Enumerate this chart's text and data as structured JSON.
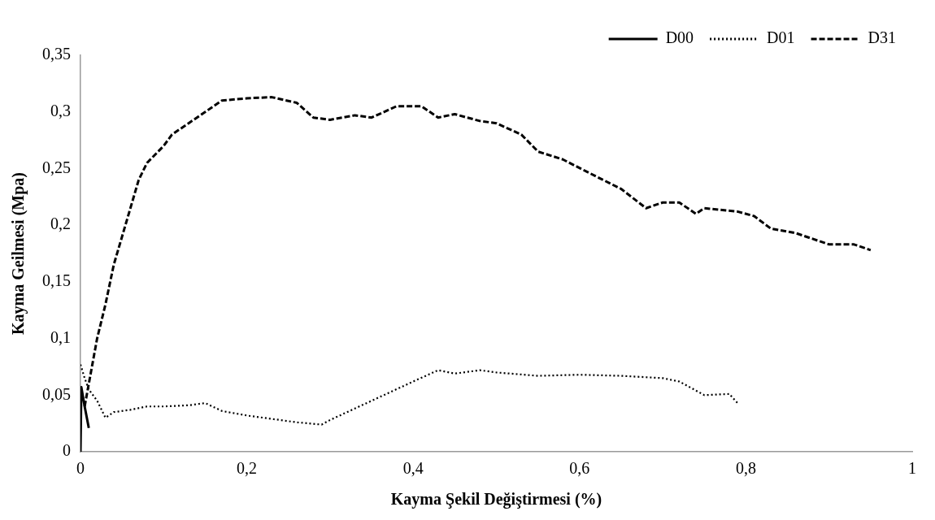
{
  "chart_data": {
    "type": "line",
    "xlabel": "Kayma Şekil Değiştirmesi (%)",
    "ylabel": "Kayma Geilmesi (Mpa)",
    "xlim": [
      0,
      1
    ],
    "xticks": [
      0,
      {
        "value": 0.2,
        "label": "0,2"
      },
      {
        "value": 0.4,
        "label": "0,4"
      },
      {
        "value": 0.6,
        "label": "0,6"
      },
      {
        "value": 0.8,
        "label": "0,8"
      },
      1
    ],
    "ylim": [
      0,
      0.35
    ],
    "yticks": [
      0,
      {
        "value": 0.05,
        "label": "0,05"
      },
      {
        "value": 0.1,
        "label": "0,1"
      },
      {
        "value": 0.15,
        "label": "0,15"
      },
      {
        "value": 0.2,
        "label": "0,2"
      },
      {
        "value": 0.25,
        "label": "0,25"
      },
      {
        "value": 0.3,
        "label": "0,3"
      },
      {
        "value": 0.35,
        "label": "0,35"
      }
    ],
    "grid": false,
    "legend": "top right",
    "marker": "none",
    "series": [
      {
        "name": "D00",
        "color": "#000000",
        "line_style": "solid",
        "x": [
          0,
          0.001,
          0.005,
          0.01
        ],
        "values": [
          0,
          0.057,
          0.04,
          0.021
        ]
      },
      {
        "name": "D01",
        "color": "#000000",
        "line_style": "dotted",
        "x": [
          0,
          0.005,
          0.01,
          0.02,
          0.03,
          0.04,
          0.06,
          0.08,
          0.1,
          0.13,
          0.15,
          0.17,
          0.2,
          0.23,
          0.26,
          0.29,
          0.3,
          0.35,
          0.4,
          0.43,
          0.45,
          0.48,
          0.5,
          0.55,
          0.6,
          0.65,
          0.7,
          0.72,
          0.75,
          0.78,
          0.79
        ],
        "values": [
          0.077,
          0.065,
          0.055,
          0.045,
          0.03,
          0.035,
          0.037,
          0.04,
          0.04,
          0.041,
          0.043,
          0.036,
          0.032,
          0.029,
          0.026,
          0.024,
          0.028,
          0.045,
          0.062,
          0.072,
          0.069,
          0.072,
          0.07,
          0.067,
          0.068,
          0.067,
          0.065,
          0.062,
          0.05,
          0.051,
          0.043
        ]
      },
      {
        "name": "D31",
        "color": "#000000",
        "line_style": "dashed",
        "x": [
          0.005,
          0.01,
          0.02,
          0.03,
          0.04,
          0.05,
          0.06,
          0.07,
          0.08,
          0.1,
          0.11,
          0.13,
          0.15,
          0.17,
          0.2,
          0.23,
          0.26,
          0.28,
          0.3,
          0.33,
          0.35,
          0.38,
          0.41,
          0.43,
          0.45,
          0.48,
          0.5,
          0.53,
          0.55,
          0.58,
          0.62,
          0.65,
          0.68,
          0.7,
          0.72,
          0.74,
          0.75,
          0.79,
          0.81,
          0.83,
          0.86,
          0.9,
          0.93,
          0.95
        ],
        "values": [
          0.04,
          0.06,
          0.1,
          0.13,
          0.165,
          0.19,
          0.215,
          0.24,
          0.255,
          0.27,
          0.28,
          0.29,
          0.3,
          0.31,
          0.312,
          0.313,
          0.308,
          0.295,
          0.293,
          0.297,
          0.295,
          0.305,
          0.305,
          0.295,
          0.298,
          0.292,
          0.29,
          0.28,
          0.265,
          0.258,
          0.243,
          0.232,
          0.215,
          0.22,
          0.22,
          0.21,
          0.215,
          0.212,
          0.208,
          0.197,
          0.193,
          0.183,
          0.183,
          0.178
        ]
      }
    ]
  }
}
